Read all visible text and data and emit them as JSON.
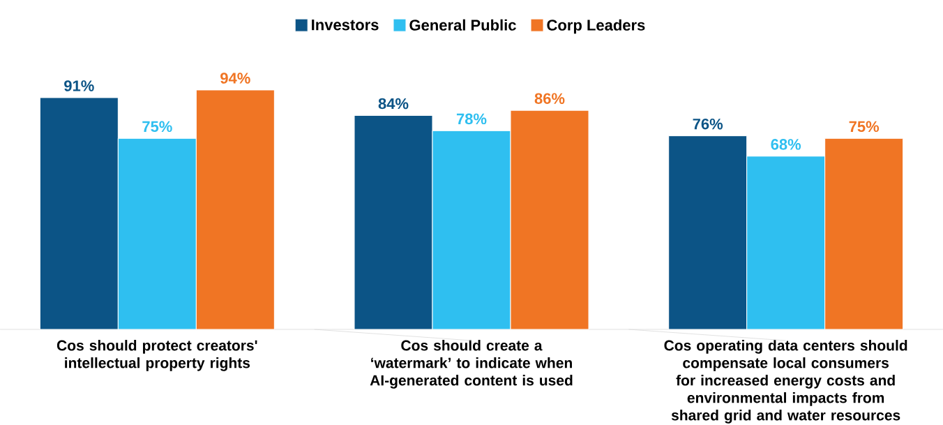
{
  "chart_data": {
    "type": "bar",
    "legend": "top",
    "categories": [
      "Cos should protect creators' intellectual property rights",
      "Cos should create a ‘watermark’ to indicate when AI-generated content is used",
      "Cos operating data centers should compensate local consumers for increased energy costs and environmental impacts from shared grid and water resources"
    ],
    "series": [
      {
        "name": "Investors",
        "color": "#0c5486",
        "values": [
          91,
          84,
          76
        ],
        "value_labels": [
          "91%",
          "84%",
          "76%"
        ]
      },
      {
        "name": "General Public",
        "color": "#2fbff0",
        "values": [
          75,
          78,
          68
        ],
        "value_labels": [
          "75%",
          "78%",
          "68%"
        ]
      },
      {
        "name": "Corp Leaders",
        "color": "#f07524",
        "values": [
          94,
          86,
          75
        ],
        "value_labels": [
          "94%",
          "86%",
          "75%"
        ]
      }
    ]
  }
}
